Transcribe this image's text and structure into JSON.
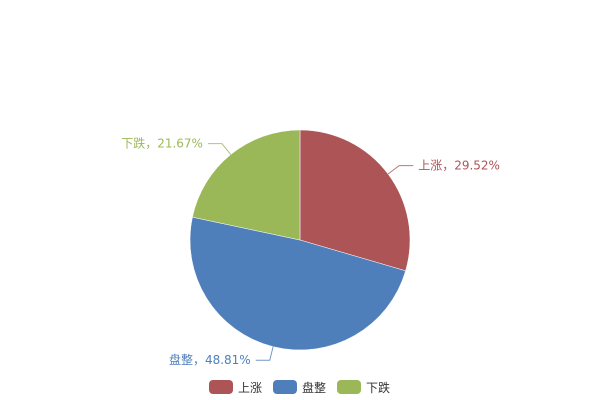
{
  "chart_data": {
    "type": "pie",
    "title": "",
    "start_angle": "top, clockwise",
    "legend_position": "bottom-center",
    "label_separator": "，",
    "slices": [
      {
        "name": "上涨",
        "value": 29.52,
        "label": "上涨，29.52%",
        "color": "#AD5457"
      },
      {
        "name": "盘整",
        "value": 48.81,
        "label": "盘整，48.81%",
        "color": "#4F7FBB"
      },
      {
        "name": "下跌",
        "value": 21.67,
        "label": "下跌，21.67%",
        "color": "#9BB858"
      }
    ]
  }
}
